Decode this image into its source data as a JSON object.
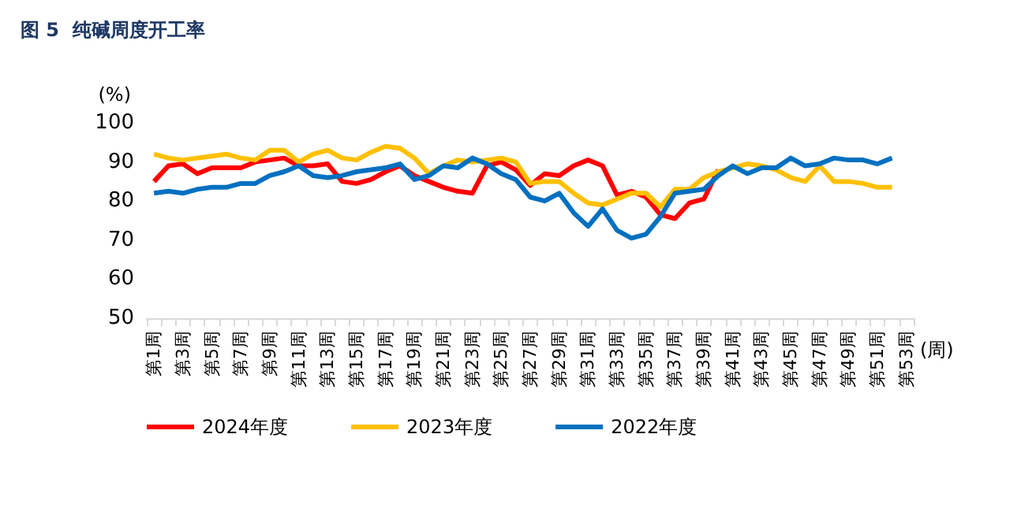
{
  "chart_data": {
    "type": "line",
    "title": "图 5  纯碱周度开工率",
    "ylabel": "(%)",
    "xlabel": "(周)",
    "categories": [
      "第1周",
      null,
      "第3周",
      null,
      "第5周",
      null,
      "第7周",
      null,
      "第9周",
      null,
      "第11周",
      null,
      "第13周",
      null,
      "第15周",
      null,
      "第17周",
      null,
      "第19周",
      null,
      "第21周",
      null,
      "第23周",
      null,
      "第25周",
      null,
      "第27周",
      null,
      "第29周",
      null,
      "第31周",
      null,
      "第33周",
      null,
      "第35周",
      null,
      "第37周",
      null,
      "第39周",
      null,
      "第41周",
      null,
      "第43周",
      null,
      "第45周",
      null,
      "第47周",
      null,
      "第49周",
      null,
      "第51周",
      null,
      "第53周"
    ],
    "series": [
      {
        "name": "2024年度",
        "color": "#ff0000",
        "values": [
          85,
          89,
          89.5,
          87,
          88.5,
          88.5,
          88.5,
          90,
          90.5,
          91,
          89,
          89,
          89.5,
          85,
          84.5,
          85.5,
          87.5,
          89,
          86.5,
          85,
          83.5,
          82.5,
          82,
          89,
          90,
          88,
          84,
          87,
          86.5,
          89,
          90.5,
          89,
          81.5,
          82.5,
          81,
          76.5,
          75.5,
          79.5,
          80.5,
          88,
          null,
          null,
          null,
          null,
          null,
          null,
          null,
          null,
          null,
          null,
          null,
          null,
          null
        ]
      },
      {
        "name": "2023年度",
        "color": "#ffc000",
        "values": [
          92,
          91,
          90.5,
          91,
          91.5,
          92,
          91,
          90.5,
          93,
          93,
          90,
          92,
          93,
          91,
          90.5,
          92.5,
          94,
          93.5,
          91,
          87,
          89,
          90.5,
          90,
          90.5,
          91,
          90,
          84.5,
          85,
          85,
          82,
          79.5,
          79,
          80.5,
          82,
          82,
          78.5,
          83,
          83,
          86,
          87.5,
          88.5,
          89.5,
          89,
          88,
          86,
          85,
          89,
          85,
          85,
          84.5,
          83.5,
          83.5,
          null
        ]
      },
      {
        "name": "2022年度",
        "color": "#0070c0",
        "values": [
          82,
          82.5,
          82,
          83,
          83.5,
          83.5,
          84.5,
          84.5,
          86.5,
          87.5,
          89,
          86.5,
          86,
          86.5,
          87.5,
          88,
          88.5,
          89.5,
          85.5,
          86.5,
          89,
          88.5,
          91,
          89.5,
          87,
          85.5,
          81,
          80,
          82,
          77,
          73.5,
          78,
          72.5,
          70.5,
          71.5,
          76,
          82,
          82.5,
          83,
          86.5,
          89,
          87,
          88.5,
          88.5,
          91,
          89,
          89.5,
          91,
          90.5,
          90.5,
          89.5,
          91,
          null
        ]
      }
    ],
    "ylim": [
      50,
      100
    ],
    "yticks": [
      50,
      60,
      70,
      80,
      90,
      100
    ],
    "grid": false,
    "legend": "bottom",
    "marker": "none",
    "line_style": "solid"
  }
}
